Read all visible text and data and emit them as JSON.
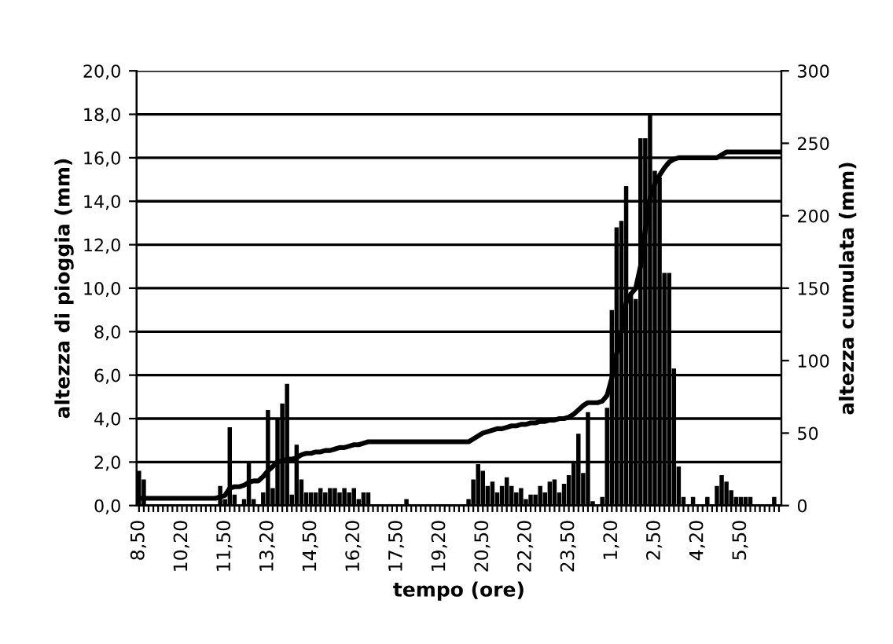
{
  "chart_data": {
    "type": "bar",
    "xlabel": "tempo (ore)",
    "ylabel": "altezza di pioggia (mm)",
    "y2label": "altezza cumulata (mm)",
    "categories": [
      "8,50",
      null,
      null,
      null,
      null,
      null,
      null,
      null,
      null,
      "10,20",
      null,
      null,
      null,
      null,
      null,
      null,
      null,
      null,
      "11,50",
      null,
      null,
      null,
      null,
      null,
      null,
      null,
      null,
      "13,20",
      null,
      null,
      null,
      null,
      null,
      null,
      null,
      null,
      "14,50",
      null,
      null,
      null,
      null,
      null,
      null,
      null,
      null,
      "16,20",
      null,
      null,
      null,
      null,
      null,
      null,
      null,
      null,
      "17,50",
      null,
      null,
      null,
      null,
      null,
      null,
      null,
      null,
      "19,20",
      null,
      null,
      null,
      null,
      null,
      null,
      null,
      null,
      "20,50",
      null,
      null,
      null,
      null,
      null,
      null,
      null,
      null,
      "22,20",
      null,
      null,
      null,
      null,
      null,
      null,
      null,
      null,
      "23,50",
      null,
      null,
      null,
      null,
      null,
      null,
      null,
      null,
      "1,20",
      null,
      null,
      null,
      null,
      null,
      null,
      null,
      null,
      "2,50",
      null,
      null,
      null,
      null,
      null,
      null,
      null,
      null,
      "4,20",
      null,
      null,
      null,
      null,
      null,
      null,
      null,
      null,
      "5,50",
      null,
      null,
      null,
      null,
      null,
      null,
      null,
      null
    ],
    "series": [
      {
        "color": "#000000",
        "values": [
          1.6,
          1.2,
          0,
          0,
          0,
          0,
          0,
          0,
          0,
          0,
          0,
          0,
          0,
          0,
          0,
          0,
          0,
          0.9,
          0.3,
          3.6,
          0.5,
          0,
          0.3,
          2.0,
          0.3,
          0,
          0.6,
          4.4,
          0.8,
          4.0,
          4.7,
          5.6,
          0.5,
          2.8,
          1.2,
          0.6,
          0.6,
          0.6,
          0.8,
          0.6,
          0.8,
          0.8,
          0.6,
          0.8,
          0.6,
          0.8,
          0.3,
          0.6,
          0.6,
          0,
          0,
          0,
          0,
          0,
          0,
          0,
          0.3,
          0,
          0,
          0,
          0,
          0,
          0,
          0,
          0,
          0,
          0,
          0,
          0,
          0.3,
          1.2,
          1.9,
          1.6,
          0.9,
          1.1,
          0.6,
          0.9,
          1.3,
          0.9,
          0.6,
          0.8,
          0.3,
          0.5,
          0.5,
          0.9,
          0.6,
          1.1,
          1.2,
          0.6,
          1.0,
          1.4,
          2.0,
          3.3,
          1.5,
          4.3,
          0.2,
          0,
          0.4,
          4.5,
          9.0,
          12.8,
          13.1,
          14.7,
          9.8,
          9.5,
          16.9,
          16.9,
          18.0,
          15.4,
          15.1,
          10.7,
          10.7,
          6.3,
          1.8,
          0.4,
          0,
          0.4,
          0,
          0,
          0.4,
          0,
          0.9,
          1.4,
          1.1,
          0.7,
          0.4,
          0.4,
          0.4,
          0.4,
          0,
          0,
          0,
          0,
          0.4,
          0
        ]
      },
      {
        "type": "line",
        "axis": "y2",
        "color": "#000000",
        "values": [
          5,
          5,
          5,
          5,
          5,
          5,
          5,
          5,
          5,
          5,
          5,
          5,
          5,
          5,
          5,
          5,
          5,
          6,
          7,
          12,
          13,
          13,
          14,
          16,
          17,
          17,
          20,
          24,
          27,
          30,
          31,
          32,
          32,
          33,
          35,
          36,
          36,
          37,
          37,
          38,
          38,
          39,
          40,
          40,
          41,
          42,
          42,
          43,
          44,
          44,
          44,
          44,
          44,
          44,
          44,
          44,
          44,
          44,
          44,
          44,
          44,
          44,
          44,
          44,
          44,
          44,
          44,
          44,
          44,
          44,
          46,
          48,
          50,
          51,
          52,
          53,
          53,
          54,
          55,
          55,
          56,
          56,
          57,
          57,
          58,
          58,
          59,
          59,
          60,
          60,
          61,
          63,
          66,
          69,
          71,
          71,
          71,
          72,
          76,
          88,
          105,
          120,
          140,
          146,
          150,
          165,
          190,
          212,
          222,
          228,
          233,
          237,
          239,
          240,
          240,
          240,
          240,
          240,
          240,
          240,
          240,
          240,
          242,
          244,
          244,
          244,
          244,
          244,
          244,
          244,
          244,
          244,
          244,
          244,
          244
        ]
      }
    ],
    "ylim": [
      0,
      20
    ],
    "yticks": [
      {
        "value": 0,
        "label": "0,0"
      },
      {
        "value": 2,
        "label": "2,0"
      },
      {
        "value": 4,
        "label": "4,0"
      },
      {
        "value": 6,
        "label": "6,0"
      },
      {
        "value": 8,
        "label": "8,0"
      },
      {
        "value": 10,
        "label": "10,0"
      },
      {
        "value": 12,
        "label": "12,0"
      },
      {
        "value": 14,
        "label": "14,0"
      },
      {
        "value": 16,
        "label": "16,0"
      },
      {
        "value": 18,
        "label": "18,0"
      },
      {
        "value": 20,
        "label": "20,0"
      }
    ],
    "y2lim": [
      0,
      300
    ],
    "y2ticks": [
      0,
      50,
      100,
      150,
      200,
      250,
      300
    ],
    "grid": "y",
    "legend": false,
    "marker": "none",
    "line_style": "solid"
  }
}
